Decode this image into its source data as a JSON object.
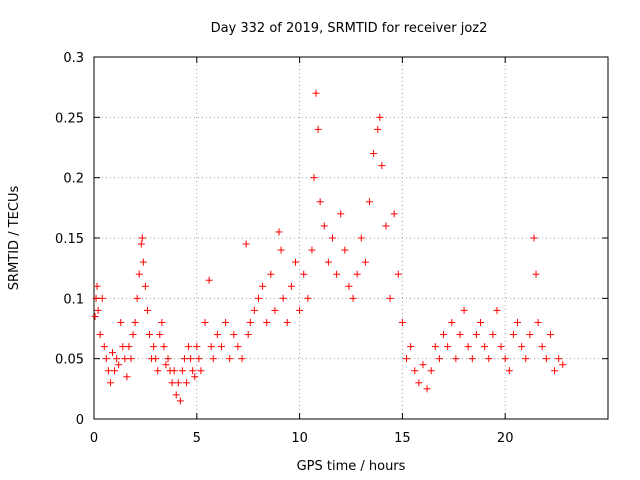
{
  "chart_data": {
    "type": "scatter",
    "title": "Day 332 of 2019, SRMTID for receiver joz2",
    "xlabel": "GPS time / hours",
    "ylabel": "SRMTID / TECUs",
    "xlim": [
      0,
      25
    ],
    "ylim": [
      0,
      0.3
    ],
    "grid": true,
    "x_ticks": [
      0,
      5,
      10,
      15,
      20
    ],
    "x_tick_labels": [
      "0",
      "5",
      "10",
      "15",
      "20"
    ],
    "y_ticks": [
      0,
      0.05,
      0.1,
      0.15,
      0.2,
      0.25,
      0.3
    ],
    "y_tick_labels": [
      "0",
      "0.05",
      "0.1",
      "0.15",
      "0.2",
      "0.25",
      "0.3"
    ],
    "marker": "+",
    "series": [
      {
        "name": "SRMTID joz2",
        "color": "#ff0000",
        "points": [
          [
            0.05,
            0.085
          ],
          [
            0.1,
            0.1
          ],
          [
            0.15,
            0.11
          ],
          [
            0.2,
            0.09
          ],
          [
            0.3,
            0.07
          ],
          [
            0.4,
            0.1
          ],
          [
            0.5,
            0.06
          ],
          [
            0.6,
            0.05
          ],
          [
            0.7,
            0.04
          ],
          [
            0.8,
            0.03
          ],
          [
            0.9,
            0.055
          ],
          [
            1.0,
            0.04
          ],
          [
            1.1,
            0.05
          ],
          [
            1.2,
            0.045
          ],
          [
            1.3,
            0.08
          ],
          [
            1.4,
            0.06
          ],
          [
            1.5,
            0.05
          ],
          [
            1.6,
            0.035
          ],
          [
            1.7,
            0.06
          ],
          [
            1.8,
            0.05
          ],
          [
            1.9,
            0.07
          ],
          [
            2.0,
            0.08
          ],
          [
            2.1,
            0.1
          ],
          [
            2.2,
            0.12
          ],
          [
            2.3,
            0.145
          ],
          [
            2.35,
            0.15
          ],
          [
            2.4,
            0.13
          ],
          [
            2.5,
            0.11
          ],
          [
            2.6,
            0.09
          ],
          [
            2.7,
            0.07
          ],
          [
            2.8,
            0.05
          ],
          [
            2.9,
            0.06
          ],
          [
            3.0,
            0.05
          ],
          [
            3.1,
            0.04
          ],
          [
            3.2,
            0.07
          ],
          [
            3.3,
            0.08
          ],
          [
            3.4,
            0.06
          ],
          [
            3.5,
            0.045
          ],
          [
            3.6,
            0.05
          ],
          [
            3.7,
            0.04
          ],
          [
            3.8,
            0.03
          ],
          [
            3.9,
            0.04
          ],
          [
            4.0,
            0.02
          ],
          [
            4.1,
            0.03
          ],
          [
            4.2,
            0.015
          ],
          [
            4.3,
            0.04
          ],
          [
            4.4,
            0.05
          ],
          [
            4.5,
            0.03
          ],
          [
            4.6,
            0.06
          ],
          [
            4.7,
            0.05
          ],
          [
            4.8,
            0.04
          ],
          [
            4.9,
            0.035
          ],
          [
            5.0,
            0.06
          ],
          [
            5.1,
            0.05
          ],
          [
            5.2,
            0.04
          ],
          [
            5.4,
            0.08
          ],
          [
            5.6,
            0.115
          ],
          [
            5.7,
            0.06
          ],
          [
            5.8,
            0.05
          ],
          [
            6.0,
            0.07
          ],
          [
            6.2,
            0.06
          ],
          [
            6.4,
            0.08
          ],
          [
            6.6,
            0.05
          ],
          [
            6.8,
            0.07
          ],
          [
            7.0,
            0.06
          ],
          [
            7.2,
            0.05
          ],
          [
            7.4,
            0.145
          ],
          [
            7.5,
            0.07
          ],
          [
            7.6,
            0.08
          ],
          [
            7.8,
            0.09
          ],
          [
            8.0,
            0.1
          ],
          [
            8.2,
            0.11
          ],
          [
            8.4,
            0.08
          ],
          [
            8.6,
            0.12
          ],
          [
            8.8,
            0.09
          ],
          [
            9.0,
            0.155
          ],
          [
            9.1,
            0.14
          ],
          [
            9.2,
            0.1
          ],
          [
            9.4,
            0.08
          ],
          [
            9.6,
            0.11
          ],
          [
            9.8,
            0.13
          ],
          [
            10.0,
            0.09
          ],
          [
            10.2,
            0.12
          ],
          [
            10.4,
            0.1
          ],
          [
            10.6,
            0.14
          ],
          [
            10.7,
            0.2
          ],
          [
            10.8,
            0.27
          ],
          [
            10.9,
            0.24
          ],
          [
            11.0,
            0.18
          ],
          [
            11.2,
            0.16
          ],
          [
            11.4,
            0.13
          ],
          [
            11.6,
            0.15
          ],
          [
            11.8,
            0.12
          ],
          [
            12.0,
            0.17
          ],
          [
            12.2,
            0.14
          ],
          [
            12.4,
            0.11
          ],
          [
            12.6,
            0.1
          ],
          [
            12.8,
            0.12
          ],
          [
            13.0,
            0.15
          ],
          [
            13.2,
            0.13
          ],
          [
            13.4,
            0.18
          ],
          [
            13.6,
            0.22
          ],
          [
            13.8,
            0.24
          ],
          [
            13.9,
            0.25
          ],
          [
            14.0,
            0.21
          ],
          [
            14.2,
            0.16
          ],
          [
            14.4,
            0.1
          ],
          [
            14.6,
            0.17
          ],
          [
            14.8,
            0.12
          ],
          [
            15.0,
            0.08
          ],
          [
            15.2,
            0.05
          ],
          [
            15.4,
            0.06
          ],
          [
            15.6,
            0.04
          ],
          [
            15.8,
            0.03
          ],
          [
            16.0,
            0.045
          ],
          [
            16.2,
            0.025
          ],
          [
            16.4,
            0.04
          ],
          [
            16.6,
            0.06
          ],
          [
            16.8,
            0.05
          ],
          [
            17.0,
            0.07
          ],
          [
            17.2,
            0.06
          ],
          [
            17.4,
            0.08
          ],
          [
            17.6,
            0.05
          ],
          [
            17.8,
            0.07
          ],
          [
            18.0,
            0.09
          ],
          [
            18.2,
            0.06
          ],
          [
            18.4,
            0.05
          ],
          [
            18.6,
            0.07
          ],
          [
            18.8,
            0.08
          ],
          [
            19.0,
            0.06
          ],
          [
            19.2,
            0.05
          ],
          [
            19.4,
            0.07
          ],
          [
            19.6,
            0.09
          ],
          [
            19.8,
            0.06
          ],
          [
            20.0,
            0.05
          ],
          [
            20.2,
            0.04
          ],
          [
            20.4,
            0.07
          ],
          [
            20.6,
            0.08
          ],
          [
            20.8,
            0.06
          ],
          [
            21.0,
            0.05
          ],
          [
            21.2,
            0.07
          ],
          [
            21.4,
            0.15
          ],
          [
            21.5,
            0.12
          ],
          [
            21.6,
            0.08
          ],
          [
            21.8,
            0.06
          ],
          [
            22.0,
            0.05
          ],
          [
            22.2,
            0.07
          ],
          [
            22.4,
            0.04
          ],
          [
            22.6,
            0.05
          ],
          [
            22.8,
            0.045
          ]
        ]
      }
    ]
  }
}
